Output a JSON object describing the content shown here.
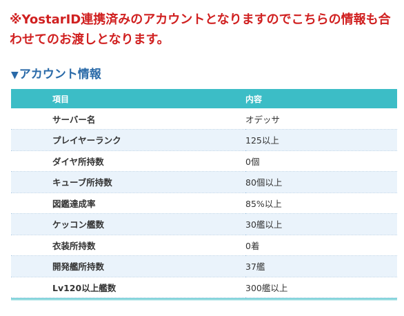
{
  "notice": "※YostarID連携済みのアカウントとなりますのでこちらの情報も合わせてのお渡しとなります。",
  "section": {
    "icon": "▼",
    "title": "アカウント情報"
  },
  "table": {
    "headers": {
      "item": "項目",
      "value": "内容"
    },
    "rows": [
      {
        "item": "サーバー名",
        "value": "オデッサ"
      },
      {
        "item": "プレイヤーランク",
        "value": "125以上"
      },
      {
        "item": "ダイヤ所持数",
        "value": "0個"
      },
      {
        "item": "キューブ所持数",
        "value": "80個以上"
      },
      {
        "item": "図鑑達成率",
        "value": "85%以上"
      },
      {
        "item": "ケッコン艦数",
        "value": "30艦以上"
      },
      {
        "item": "衣装所持数",
        "value": "0着"
      },
      {
        "item": "開発艦所持数",
        "value": "37艦"
      },
      {
        "item": "Lv120以上艦数",
        "value": "300艦以上"
      }
    ]
  },
  "colors": {
    "notice": "#d02020",
    "heading": "#2a6aa8",
    "header_bg": "#3cbdc6",
    "row_alt_bg": "#eaf3fb"
  }
}
